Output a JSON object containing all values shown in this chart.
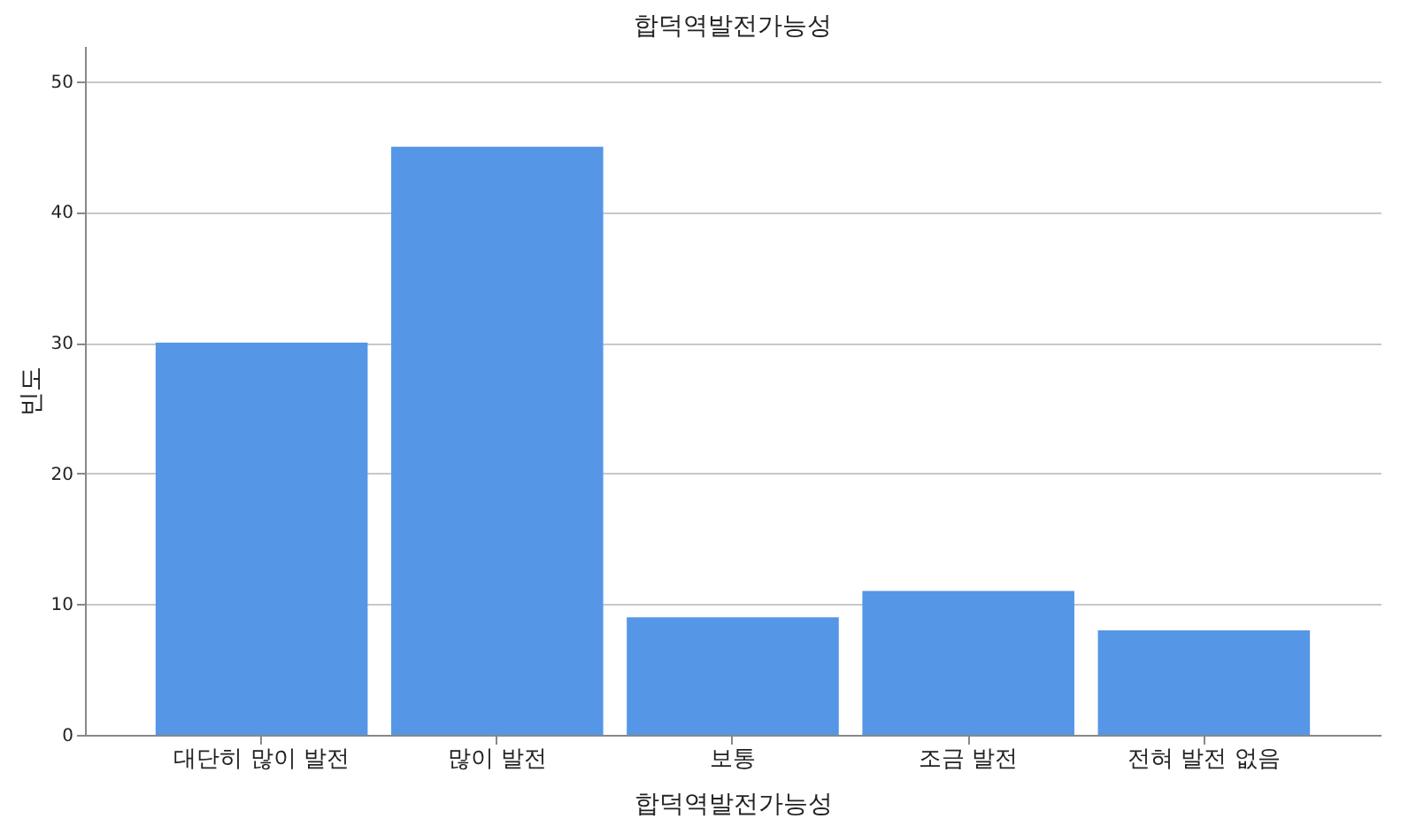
{
  "chart_data": {
    "type": "bar",
    "title": "합덕역발전가능성",
    "xlabel": "합덕역발전가능성",
    "ylabel": "빈도",
    "categories": [
      "대단히 많이 발전",
      "많이 발전",
      "보통",
      "조금 발전",
      "전혀 발전 없음"
    ],
    "values": [
      30,
      45,
      9,
      11,
      8
    ],
    "color": "#5596e6",
    "ylim": [
      0,
      52.7
    ],
    "yticks": [
      0,
      10,
      20,
      30,
      40,
      50
    ],
    "grid": "y"
  }
}
